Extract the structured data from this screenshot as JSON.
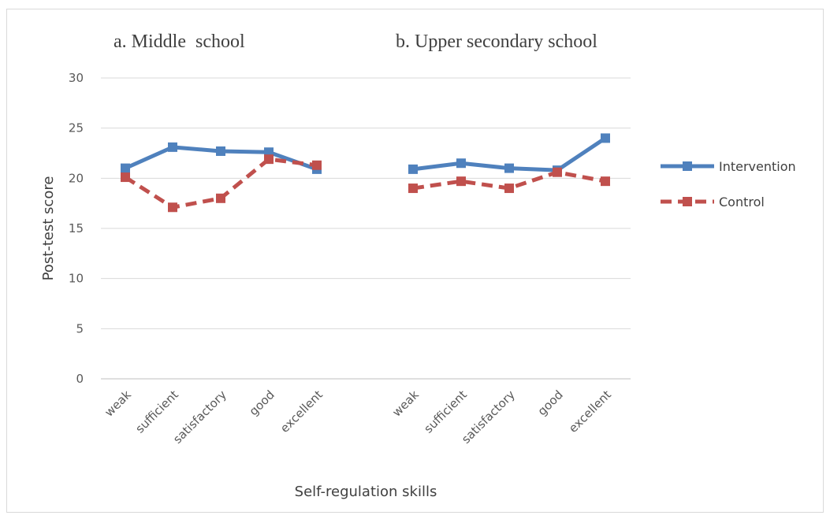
{
  "chart_data": {
    "type": "line",
    "ylabel": "Post-test score",
    "xlabel": "Self-regulation skills",
    "ylim": [
      0,
      30
    ],
    "yticks": [
      0,
      5,
      10,
      15,
      20,
      25,
      30
    ],
    "grid": true,
    "legend_position": "right",
    "panels": [
      {
        "title": "a. Middle  school",
        "categories": [
          "weak",
          "sufficient",
          "satisfactory",
          "good",
          "excellent"
        ],
        "series": [
          {
            "name": "Intervention",
            "values": [
              21.0,
              23.1,
              22.7,
              22.6,
              20.9
            ]
          },
          {
            "name": "Control",
            "values": [
              20.1,
              17.1,
              18.0,
              21.9,
              21.3
            ]
          }
        ]
      },
      {
        "title": "b. Upper secondary school",
        "categories": [
          "weak",
          "sufficient",
          "satisfactory",
          "good",
          "excellent"
        ],
        "series": [
          {
            "name": "Intervention",
            "values": [
              20.9,
              21.5,
              21.0,
              20.8,
              24.0
            ]
          },
          {
            "name": "Control",
            "values": [
              19.0,
              19.7,
              19.0,
              20.6,
              19.7
            ]
          }
        ]
      }
    ],
    "series_styles": [
      {
        "name": "Intervention",
        "color": "#4f81bd",
        "dash": "solid"
      },
      {
        "name": "Control",
        "color": "#c0504d",
        "dash": "dashed"
      }
    ]
  }
}
